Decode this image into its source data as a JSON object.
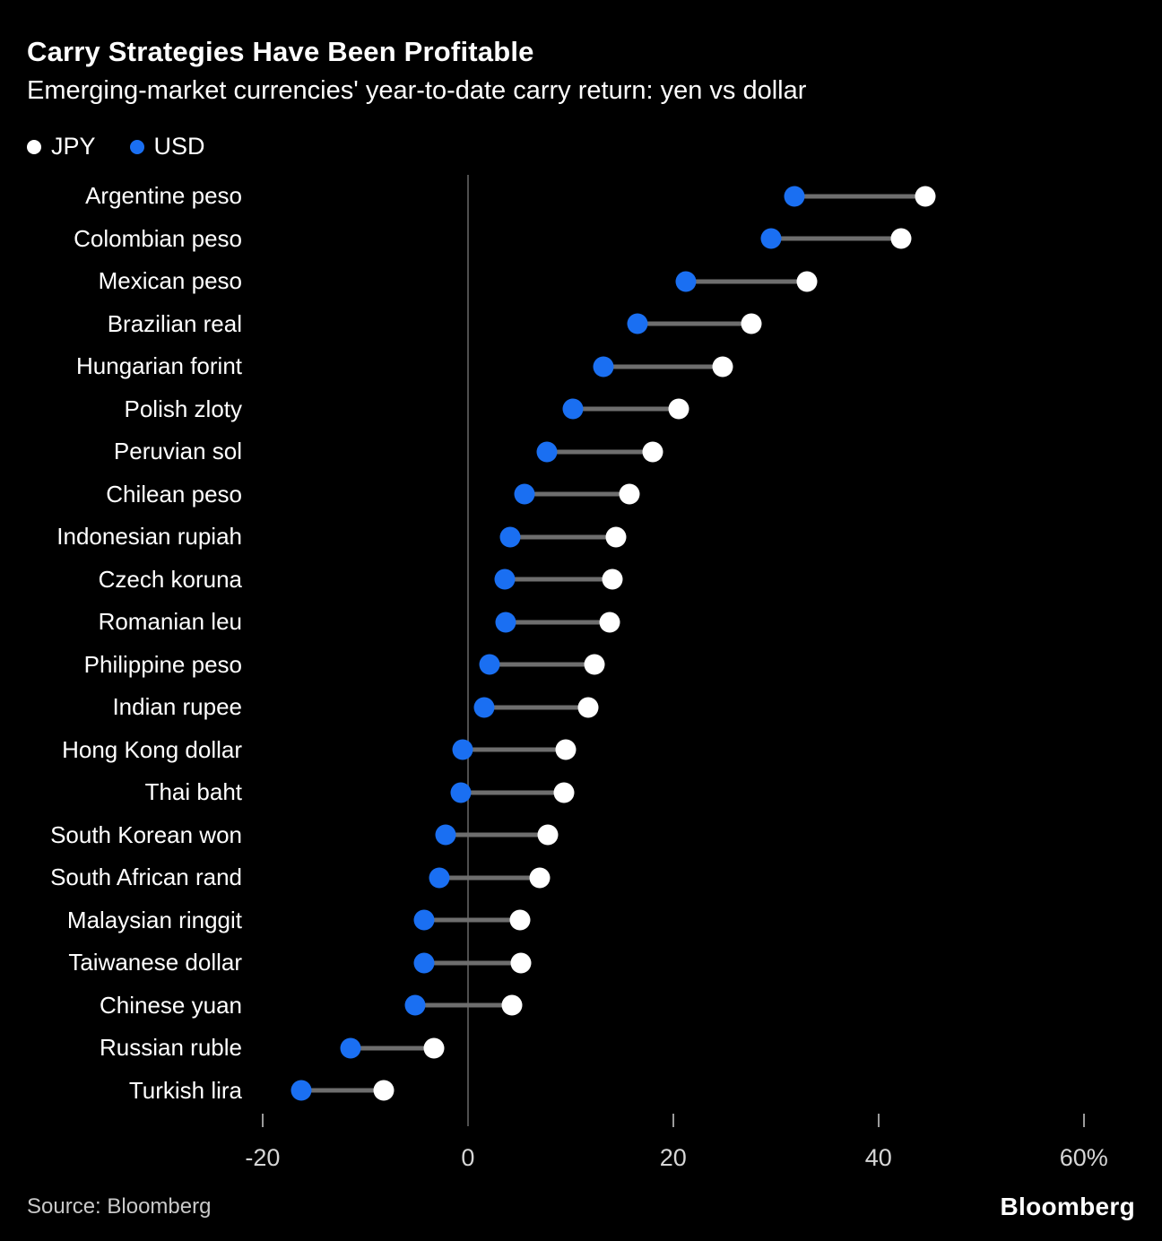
{
  "chart_data": {
    "type": "dumbbell",
    "title": "Carry Strategies Have Been Profitable",
    "subtitle": "Emerging-market currencies' year-to-date carry return: yen vs dollar",
    "unit": "%",
    "legend_position": "top-left",
    "categories": [
      "Argentine peso",
      "Colombian peso",
      "Mexican peso",
      "Brazilian real",
      "Hungarian forint",
      "Polish zloty",
      "Peruvian sol",
      "Chilean peso",
      "Indonesian rupiah",
      "Czech koruna",
      "Romanian leu",
      "Philippine peso",
      "Indian rupee",
      "Hong Kong dollar",
      "Thai baht",
      "South Korean won",
      "South African rand",
      "Malaysian ringgit",
      "Taiwanese dollar",
      "Chinese yuan",
      "Russian ruble",
      "Turkish lira"
    ],
    "series": [
      {
        "name": "JPY",
        "color": "#ffffff",
        "values": [
          44.6,
          42.2,
          33.0,
          27.6,
          24.8,
          20.5,
          18.0,
          15.7,
          14.4,
          14.1,
          13.8,
          12.3,
          11.7,
          9.5,
          9.4,
          7.8,
          7.0,
          5.1,
          5.2,
          4.3,
          -3.3,
          -8.2
        ]
      },
      {
        "name": "USD",
        "color": "#1a6ff2",
        "values": [
          31.8,
          29.5,
          21.2,
          16.5,
          13.2,
          10.2,
          7.7,
          5.5,
          4.1,
          3.6,
          3.7,
          2.1,
          1.6,
          -0.5,
          -0.7,
          -2.2,
          -2.8,
          -4.3,
          -4.3,
          -5.1,
          -11.4,
          -16.2
        ]
      }
    ],
    "xlim": [
      -22,
      65
    ],
    "x_ticks": [
      {
        "value": -20,
        "label": "-20",
        "mark": true
      },
      {
        "value": 0,
        "label": "0",
        "mark": false
      },
      {
        "value": 20,
        "label": "20",
        "mark": true
      },
      {
        "value": 40,
        "label": "40",
        "mark": true
      },
      {
        "value": 60,
        "label": "60%",
        "mark": true
      }
    ],
    "zero_line": true,
    "grid": "zero-line-only",
    "connector_color": "#6e6e6e",
    "background_color": "#000000"
  },
  "footer": {
    "source": "Source: Bloomberg",
    "logo": "Bloomberg"
  }
}
